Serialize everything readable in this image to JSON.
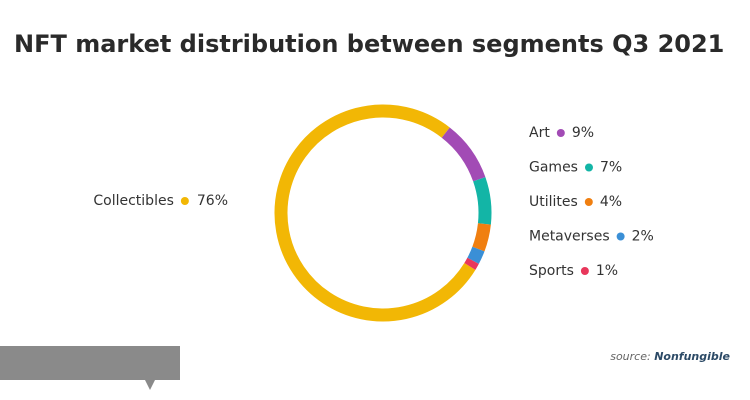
{
  "chart_data": {
    "type": "donut",
    "title": "NFT market distribution between segments Q3 2021",
    "categories": [
      "Collectibles",
      "Art",
      "Games",
      "Utilites",
      "Metaverses",
      "Sports"
    ],
    "values": [
      76,
      9,
      7,
      4,
      2,
      1
    ],
    "value_labels": [
      "76%",
      "9%",
      "7%",
      "4%",
      "2%",
      "1%"
    ],
    "colors": [
      "#f2b705",
      "#a24bb5",
      "#13b5a6",
      "#f07f10",
      "#3a8fd6",
      "#e8375b"
    ]
  },
  "source": {
    "label": "source:",
    "name": "Nonfungible"
  }
}
